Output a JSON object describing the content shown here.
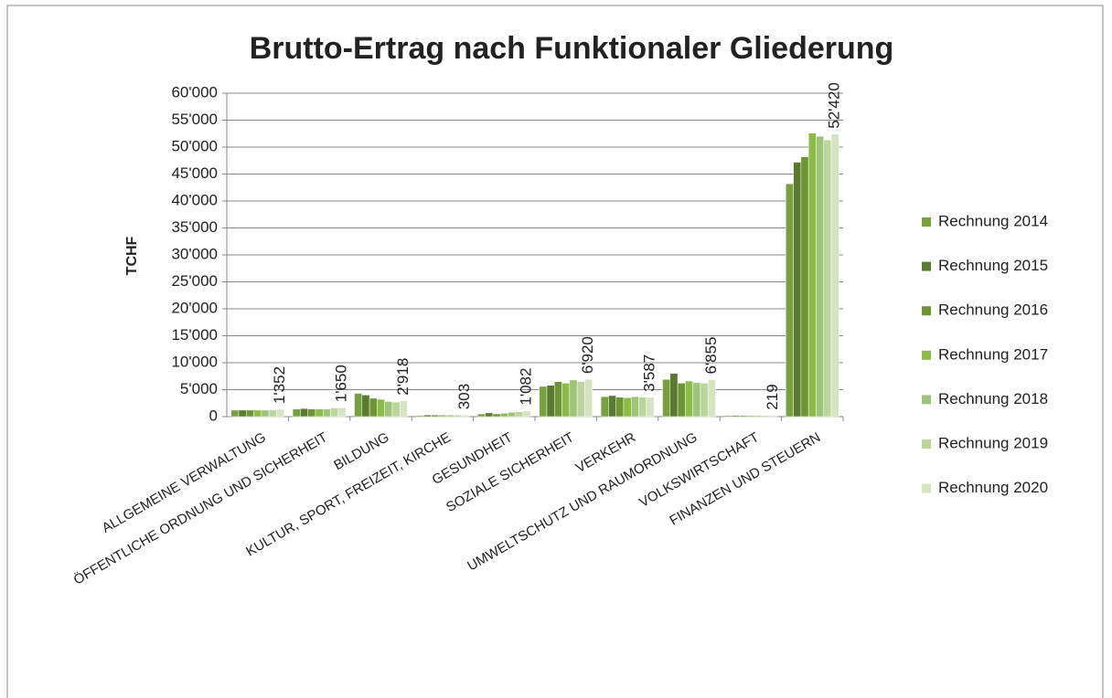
{
  "chart_data": {
    "type": "bar",
    "title": "Brutto-Ertrag nach Funktionaler Gliederung",
    "y_label": "TCHF",
    "categories": [
      "ALLGEMEINE VERWALTUNG",
      "ÖFFENTLICHE ORDNUNG UND SICHERHEIT",
      "BILDUNG",
      "KULTUR, SPORT, FREIZEIT, KIRCHE",
      "GESUNDHEIT",
      "SOZIALE SICHERHEIT",
      "VERKEHR",
      "UMWELTSCHUTZ UND RAUMORDNUNG",
      "VOLKSWIRTSCHAFT",
      "FINANZEN UND STEUERN"
    ],
    "series": [
      {
        "name": "Rechnung 2014",
        "color": "#77a040",
        "values": [
          1200,
          1400,
          4300,
          200,
          500,
          5600,
          3700,
          6900,
          200,
          43200
        ]
      },
      {
        "name": "Rechnung 2015",
        "color": "#5a7a30",
        "values": [
          1200,
          1500,
          4000,
          300,
          700,
          5800,
          3900,
          8000,
          200,
          47200
        ]
      },
      {
        "name": "Rechnung 2016",
        "color": "#6e9438",
        "values": [
          1200,
          1400,
          3400,
          300,
          500,
          6500,
          3600,
          6200,
          200,
          48200
        ]
      },
      {
        "name": "Rechnung 2017",
        "color": "#8dbb48",
        "values": [
          1200,
          1400,
          3200,
          300,
          600,
          6200,
          3500,
          6600,
          200,
          52600
        ]
      },
      {
        "name": "Rechnung 2018",
        "color": "#9dc479",
        "values": [
          1200,
          1400,
          2800,
          300,
          800,
          6800,
          3700,
          6300,
          200,
          52000
        ]
      },
      {
        "name": "Rechnung 2019",
        "color": "#bcd59d",
        "values": [
          1250,
          1600,
          2700,
          300,
          900,
          6500,
          3600,
          6200,
          200,
          51300
        ]
      },
      {
        "name": "Rechnung 2020",
        "color": "#d7e4c2",
        "values": [
          1352,
          1650,
          2918,
          303,
          1082,
          6920,
          3587,
          6855,
          219,
          52420
        ],
        "value_labels": [
          "1'352",
          "1'650",
          "2'918",
          "303",
          "1'082",
          "6'920",
          "3'587",
          "6'855",
          "219",
          "52'420"
        ]
      }
    ],
    "ylim": [
      0,
      60000
    ],
    "yticks": [
      0,
      {
        "value": 5000,
        "label": "5'000"
      },
      {
        "value": 10000,
        "label": "10'000"
      },
      {
        "value": 15000,
        "label": "15'000"
      },
      {
        "value": 20000,
        "label": "20'000"
      },
      {
        "value": 25000,
        "label": "25'000"
      },
      {
        "value": 30000,
        "label": "30'000"
      },
      {
        "value": 35000,
        "label": "35'000"
      },
      {
        "value": 40000,
        "label": "40'000"
      },
      {
        "value": 45000,
        "label": "45'000"
      },
      {
        "value": 50000,
        "label": "50'000"
      },
      {
        "value": 55000,
        "label": "55'000"
      },
      {
        "value": 60000,
        "label": "60'000"
      }
    ],
    "legend": "right"
  }
}
